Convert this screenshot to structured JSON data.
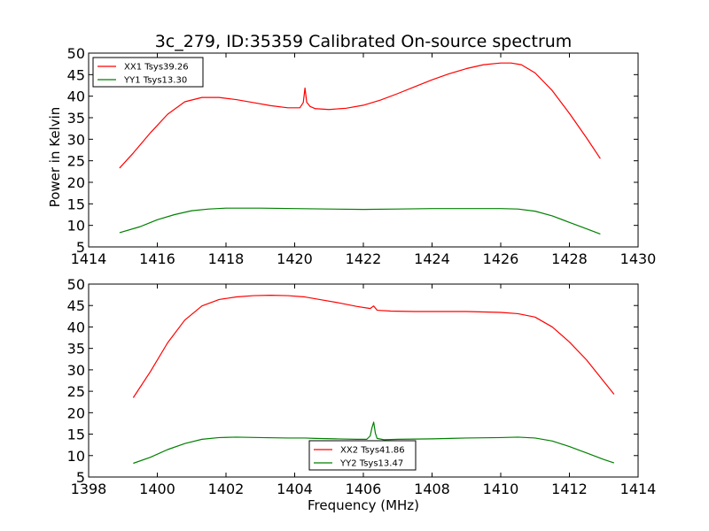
{
  "chart_data": [
    {
      "type": "line",
      "title": "3c_279, ID:35359 Calibrated On-source spectrum",
      "xlabel": "",
      "ylabel": "Power in Kelvin",
      "xlim": [
        1414,
        1430
      ],
      "ylim": [
        5,
        50
      ],
      "xticks": [
        "1414",
        "1416",
        "1418",
        "1420",
        "1422",
        "1424",
        "1426",
        "1428",
        "1430"
      ],
      "yticks": [
        "5",
        "10",
        "15",
        "20",
        "25",
        "30",
        "35",
        "40",
        "45",
        "50"
      ],
      "legend_position": "upper-left",
      "series": [
        {
          "name": "XX1 Tsys39.26",
          "color": "#ff0000",
          "x": [
            1414.9,
            1415.3,
            1415.8,
            1416.3,
            1416.8,
            1417.3,
            1417.8,
            1418.3,
            1418.8,
            1419.3,
            1419.8,
            1420.15,
            1420.25,
            1420.3,
            1420.35,
            1420.45,
            1420.6,
            1421.0,
            1421.5,
            1422.0,
            1422.5,
            1423.0,
            1423.5,
            1424.0,
            1424.5,
            1425.0,
            1425.5,
            1426.0,
            1426.3,
            1426.6,
            1427.0,
            1427.5,
            1428.0,
            1428.5,
            1428.9
          ],
          "y": [
            23.3,
            26.8,
            31.5,
            35.8,
            38.7,
            39.7,
            39.7,
            39.2,
            38.5,
            37.8,
            37.3,
            37.3,
            38.5,
            41.9,
            38.6,
            37.6,
            37.1,
            36.9,
            37.2,
            37.9,
            39.1,
            40.6,
            42.2,
            43.8,
            45.2,
            46.4,
            47.3,
            47.7,
            47.7,
            47.3,
            45.4,
            41.3,
            36.0,
            30.3,
            25.5
          ]
        },
        {
          "name": "YY1 Tsys13.30",
          "color": "#008000",
          "x": [
            1414.9,
            1415.5,
            1416.0,
            1416.5,
            1417.0,
            1417.5,
            1418.0,
            1419.0,
            1420.0,
            1421.0,
            1422.0,
            1423.0,
            1424.0,
            1425.0,
            1426.0,
            1426.5,
            1427.0,
            1427.5,
            1428.0,
            1428.5,
            1428.9
          ],
          "y": [
            8.3,
            9.7,
            11.3,
            12.5,
            13.4,
            13.8,
            14.0,
            14.0,
            13.9,
            13.8,
            13.7,
            13.8,
            13.9,
            13.9,
            13.9,
            13.8,
            13.3,
            12.2,
            10.7,
            9.2,
            8.0
          ]
        }
      ]
    },
    {
      "type": "line",
      "title": "",
      "xlabel": "Frequency (MHz)",
      "ylabel": "",
      "xlim": [
        1398,
        1414
      ],
      "ylim": [
        5,
        50
      ],
      "xticks": [
        "1398",
        "1400",
        "1402",
        "1404",
        "1406",
        "1408",
        "1410",
        "1412",
        "1414"
      ],
      "yticks": [
        "5",
        "10",
        "15",
        "20",
        "25",
        "30",
        "35",
        "40",
        "45",
        "50"
      ],
      "legend_position": "lower-center",
      "series": [
        {
          "name": "XX2 Tsys41.86",
          "color": "#ff0000",
          "x": [
            1399.3,
            1399.8,
            1400.3,
            1400.8,
            1401.3,
            1401.8,
            1402.3,
            1402.8,
            1403.3,
            1403.8,
            1404.3,
            1404.8,
            1405.3,
            1405.8,
            1406.2,
            1406.3,
            1406.4,
            1406.8,
            1407.5,
            1408.0,
            1408.5,
            1409.0,
            1409.5,
            1410.0,
            1410.5,
            1411.0,
            1411.5,
            1412.0,
            1412.5,
            1413.0,
            1413.3
          ],
          "y": [
            23.5,
            29.6,
            36.3,
            41.6,
            44.9,
            46.4,
            47.0,
            47.3,
            47.4,
            47.3,
            47.0,
            46.3,
            45.6,
            44.8,
            44.3,
            44.9,
            43.9,
            43.7,
            43.6,
            43.6,
            43.6,
            43.6,
            43.5,
            43.4,
            43.1,
            42.3,
            40.0,
            36.5,
            32.3,
            27.3,
            24.3
          ]
        },
        {
          "name": "YY2 Tsys13.47",
          "color": "#008000",
          "x": [
            1399.3,
            1399.8,
            1400.3,
            1400.8,
            1401.3,
            1401.8,
            1402.3,
            1403.0,
            1403.8,
            1404.3,
            1404.6,
            1405.2,
            1405.8,
            1406.1,
            1406.2,
            1406.25,
            1406.3,
            1406.35,
            1406.4,
            1406.6,
            1407.0,
            1408.0,
            1409.0,
            1410.0,
            1410.5,
            1411.0,
            1411.5,
            1412.0,
            1412.5,
            1413.0,
            1413.3
          ],
          "y": [
            8.2,
            9.6,
            11.4,
            12.8,
            13.8,
            14.2,
            14.3,
            14.2,
            14.1,
            14.1,
            14.0,
            13.9,
            13.8,
            13.8,
            14.6,
            16.5,
            17.8,
            15.2,
            14.0,
            13.7,
            13.8,
            13.9,
            14.1,
            14.2,
            14.3,
            14.1,
            13.4,
            12.1,
            10.6,
            9.1,
            8.3
          ]
        }
      ]
    }
  ]
}
